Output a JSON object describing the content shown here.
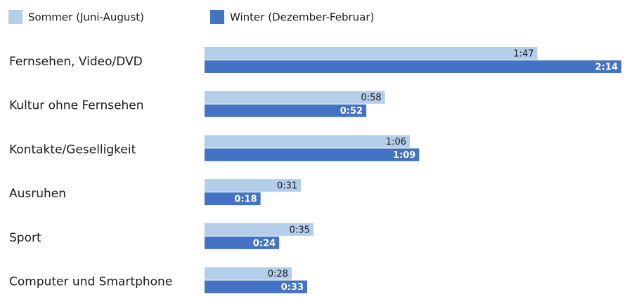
{
  "chart_data": {
    "type": "bar",
    "orientation": "horizontal",
    "categories": [
      "Fernsehen, Video/DVD",
      "Kultur ohne Fernsehen",
      "Kontakte/Geselligkeit",
      "Ausruhen",
      "Sport",
      "Computer und Smartphone"
    ],
    "series": [
      {
        "name": "Sommer (Juni-August)",
        "color": "#b4cde9",
        "values": [
          107,
          58,
          66,
          31,
          35,
          28
        ],
        "value_labels": [
          "1:47",
          "0:58",
          "1:06",
          "0:31",
          "0:35",
          "0:28"
        ]
      },
      {
        "name": "Winter (Dezember-Februar)",
        "color": "#4373c2",
        "values": [
          134,
          52,
          69,
          18,
          24,
          33
        ],
        "value_labels": [
          "2:14",
          "0:52",
          "1:09",
          "0:18",
          "0:24",
          "0:33"
        ]
      }
    ]
  }
}
